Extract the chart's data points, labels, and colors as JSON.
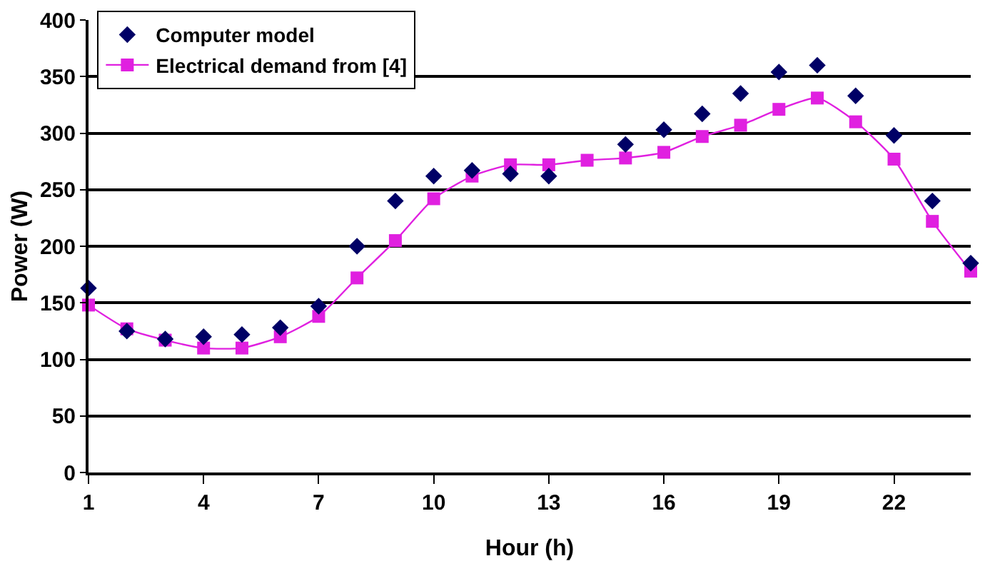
{
  "chart_data": {
    "type": "scatter",
    "xlabel": "Hour (h)",
    "ylabel": "Power (W)",
    "x": [
      1,
      2,
      3,
      4,
      5,
      6,
      7,
      8,
      9,
      10,
      11,
      12,
      13,
      14,
      15,
      16,
      17,
      18,
      19,
      20,
      21,
      22,
      23,
      24
    ],
    "series": [
      {
        "name": "Computer model",
        "marker": "diamond",
        "color": "#000066",
        "values": [
          163,
          125,
          118,
          120,
          122,
          128,
          147,
          200,
          240,
          262,
          267,
          264,
          262,
          null,
          290,
          303,
          317,
          335,
          354,
          360,
          333,
          298,
          240,
          185
        ]
      },
      {
        "name": "Electrical demand from [4]",
        "type": "line",
        "marker": "square",
        "color": "#e020e0",
        "values": [
          148,
          127,
          117,
          110,
          110,
          120,
          138,
          172,
          205,
          242,
          262,
          272,
          272,
          276,
          278,
          283,
          297,
          307,
          321,
          331,
          310,
          277,
          222,
          178
        ]
      }
    ],
    "xlim": [
      1,
      24
    ],
    "xticks": [
      1,
      4,
      7,
      10,
      13,
      16,
      19,
      22
    ],
    "ylim": [
      0,
      400
    ],
    "yticks": [
      0,
      50,
      100,
      150,
      200,
      250,
      300,
      350,
      400
    ],
    "grid": "y",
    "legend": "top left"
  }
}
